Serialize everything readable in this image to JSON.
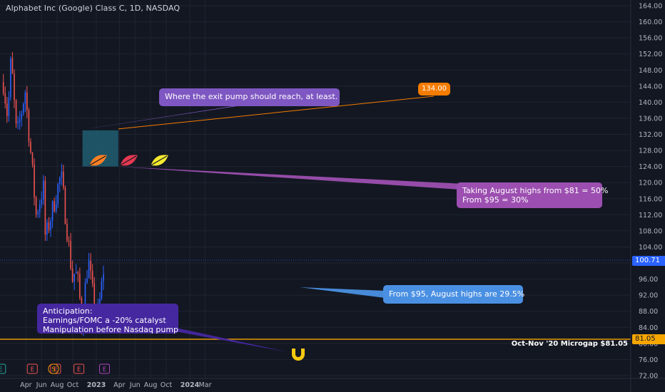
{
  "title": "Alphabet Inc (Google) Class C, 1D, NASDAQ",
  "colors": {
    "background": "#131722",
    "grid": "#1f2430",
    "axis_text": "#b2b5be",
    "bull": "#2962ff",
    "bear": "#ef5350",
    "microgap_line": "#f7a600",
    "exit_box": "#1f5a6b"
  },
  "chart_data": {
    "type": "candlestick",
    "ylim": [
      72,
      166
    ],
    "y_ticks": [
      "164.00",
      "160.00",
      "156.00",
      "152.00",
      "148.00",
      "144.00",
      "140.00",
      "136.00",
      "132.00",
      "128.00",
      "124.00",
      "120.00",
      "116.00",
      "112.00",
      "108.00",
      "104.00",
      "100.00",
      "96.00",
      "92.00",
      "88.00",
      "84.00",
      "80.00",
      "76.00",
      "72.00"
    ],
    "x_ticks": [
      "Apr",
      "Jun",
      "Aug",
      "Oct",
      "2023",
      "Apr",
      "Jun",
      "Aug",
      "Oct",
      "2024",
      "Mar"
    ],
    "price_path": [
      {
        "date": "2022-01-03",
        "close": 145
      },
      {
        "date": "2022-01-20",
        "close": 136
      },
      {
        "date": "2022-02-02",
        "close": 151
      },
      {
        "date": "2022-02-24",
        "close": 131
      },
      {
        "date": "2022-03-29",
        "close": 143
      },
      {
        "date": "2022-05-11",
        "close": 112
      },
      {
        "date": "2022-06-08",
        "close": 119
      },
      {
        "date": "2022-06-16",
        "close": 106
      },
      {
        "date": "2022-08-16",
        "close": 122
      },
      {
        "date": "2022-09-30",
        "close": 96
      },
      {
        "date": "2022-10-10",
        "close": 98
      },
      {
        "date": "2022-10-26",
        "close": 94
      },
      {
        "date": "2022-11-03",
        "close": 84
      },
      {
        "date": "2022-11-30",
        "close": 101
      },
      {
        "date": "2022-12-28",
        "close": 87
      },
      {
        "date": "2023-01-10",
        "close": 88
      },
      {
        "date": "2023-01-25",
        "close": 96
      },
      {
        "date": "2023-02-02",
        "close": 100.71
      }
    ],
    "last_price": "100.71",
    "microgap_level": "81.05",
    "microgap_label": "Oct-Nov '20 Microgap $81.05",
    "target_label": "134.00",
    "exit_zone": {
      "top": 133,
      "bottom": 124,
      "start": "2022-11-08",
      "end": "2023-03-28"
    },
    "earnings_markers": [
      {
        "date": "2021-12-23",
        "label": "E",
        "color": "#26a69a"
      },
      {
        "date": "2022-04-26",
        "label": "E",
        "color": "#ef5350"
      },
      {
        "date": "2022-07-26",
        "label": "E",
        "color": "#ef5350"
      },
      {
        "date": "2022-10-25",
        "label": "E",
        "color": "#ef5350"
      },
      {
        "date": "2023-02-02",
        "label": "E",
        "color": "#ab47bc"
      }
    ],
    "split_marker": {
      "date": "2022-07-18",
      "label": "S",
      "color": "#ff9800"
    }
  },
  "annotations": {
    "exit_pump": "Where the exit pump should reach, at least.",
    "august_line1": "Taking August highs from $81 = 50%",
    "august_line2": "From $95 = 30%",
    "from95": "From $95, August highs are 29.5%",
    "anticipation_line1": "Anticipation:",
    "anticipation_line2": "Earnings/FOMC a -20% catalyst",
    "anticipation_line3": "Manipulation before Nasdaq pump"
  }
}
